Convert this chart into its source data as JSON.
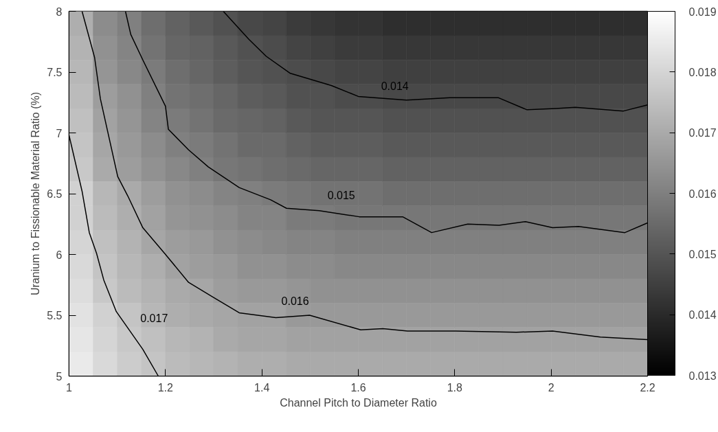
{
  "chart_data": {
    "type": "heatmap",
    "xlabel": "Channel Pitch to Diameter Ratio",
    "ylabel": "Uranium to Fissionable Material Ratio (%)",
    "xlim": [
      1,
      2.2
    ],
    "ylim": [
      5,
      8
    ],
    "xticks": [
      1,
      1.2,
      1.4,
      1.6,
      1.8,
      2,
      2.2
    ],
    "yticks": [
      5,
      5.5,
      6,
      6.5,
      7,
      7.5,
      8
    ],
    "clim": [
      0.013,
      0.019
    ],
    "cticks": [
      0.013,
      0.014,
      0.015,
      0.016,
      0.017,
      0.018,
      0.019
    ],
    "x": [
      1.025,
      1.075,
      1.125,
      1.175,
      1.225,
      1.275,
      1.325,
      1.375,
      1.425,
      1.475,
      1.525,
      1.575,
      1.625,
      1.675,
      1.725,
      1.775,
      1.825,
      1.875,
      1.925,
      1.975,
      2.025,
      2.075,
      2.125,
      2.175
    ],
    "cells": [
      [
        0.0171,
        0.0163,
        0.016,
        0.0156,
        0.0153,
        0.0151,
        0.0149,
        0.0147,
        0.0146,
        0.0144,
        0.0143,
        0.0142,
        0.0142,
        0.0141,
        0.0141,
        0.0141,
        0.0141,
        0.0141,
        0.0141,
        0.0141,
        0.0141,
        0.0141,
        0.0141,
        0.0141
      ],
      [
        0.0172,
        0.0164,
        0.0161,
        0.0157,
        0.0154,
        0.0153,
        0.0151,
        0.0149,
        0.0148,
        0.0146,
        0.0145,
        0.0144,
        0.0144,
        0.0143,
        0.0143,
        0.0143,
        0.0143,
        0.0143,
        0.0143,
        0.0143,
        0.0143,
        0.0143,
        0.0143,
        0.0143
      ],
      [
        0.0173,
        0.0165,
        0.0162,
        0.0159,
        0.0156,
        0.0154,
        0.0152,
        0.015,
        0.0149,
        0.0148,
        0.0147,
        0.0146,
        0.0146,
        0.0145,
        0.0145,
        0.0145,
        0.0145,
        0.0145,
        0.0145,
        0.0145,
        0.0145,
        0.0145,
        0.0145,
        0.0145
      ],
      [
        0.0174,
        0.0167,
        0.0164,
        0.016,
        0.0157,
        0.0156,
        0.0154,
        0.0152,
        0.0151,
        0.0149,
        0.0149,
        0.0148,
        0.0148,
        0.0147,
        0.0147,
        0.0147,
        0.0147,
        0.0147,
        0.0147,
        0.0147,
        0.0147,
        0.0147,
        0.0147,
        0.0147
      ],
      [
        0.0175,
        0.0168,
        0.0165,
        0.0161,
        0.0159,
        0.0157,
        0.0155,
        0.0154,
        0.0153,
        0.0151,
        0.015,
        0.015,
        0.015,
        0.0149,
        0.0149,
        0.0149,
        0.0149,
        0.0149,
        0.0149,
        0.0149,
        0.0149,
        0.0149,
        0.0149,
        0.0149
      ],
      [
        0.0176,
        0.0169,
        0.0166,
        0.0163,
        0.016,
        0.0159,
        0.0157,
        0.0155,
        0.0155,
        0.0153,
        0.0152,
        0.0152,
        0.0152,
        0.0151,
        0.0151,
        0.0151,
        0.0151,
        0.0151,
        0.0151,
        0.0151,
        0.0151,
        0.0151,
        0.0151,
        0.0151
      ],
      [
        0.0177,
        0.017,
        0.0167,
        0.0164,
        0.0162,
        0.016,
        0.0158,
        0.0157,
        0.0156,
        0.0155,
        0.0154,
        0.0154,
        0.0154,
        0.0153,
        0.0153,
        0.0153,
        0.0153,
        0.0153,
        0.0153,
        0.0153,
        0.0153,
        0.0153,
        0.0153,
        0.0153
      ],
      [
        0.0179,
        0.0173,
        0.017,
        0.0167,
        0.0164,
        0.0163,
        0.0161,
        0.016,
        0.0159,
        0.0158,
        0.0157,
        0.0157,
        0.0157,
        0.0156,
        0.0156,
        0.0156,
        0.0156,
        0.0156,
        0.0156,
        0.0156,
        0.0156,
        0.0156,
        0.0156,
        0.0156
      ],
      [
        0.0179,
        0.0174,
        0.0171,
        0.0168,
        0.0165,
        0.0164,
        0.0163,
        0.0161,
        0.0161,
        0.0159,
        0.0159,
        0.0158,
        0.0158,
        0.0158,
        0.0158,
        0.0158,
        0.0158,
        0.0158,
        0.0158,
        0.0158,
        0.0158,
        0.0158,
        0.0158,
        0.0158
      ],
      [
        0.018,
        0.0175,
        0.0172,
        0.0169,
        0.0167,
        0.0166,
        0.0164,
        0.0163,
        0.0162,
        0.0161,
        0.0161,
        0.016,
        0.016,
        0.016,
        0.016,
        0.016,
        0.016,
        0.016,
        0.016,
        0.016,
        0.016,
        0.016,
        0.016,
        0.016
      ],
      [
        0.0181,
        0.0176,
        0.0173,
        0.0171,
        0.0168,
        0.0167,
        0.0166,
        0.0164,
        0.0164,
        0.0163,
        0.0163,
        0.0162,
        0.0162,
        0.0162,
        0.0162,
        0.0162,
        0.0162,
        0.0162,
        0.0162,
        0.0162,
        0.0162,
        0.0162,
        0.0162,
        0.0162
      ],
      [
        0.0182,
        0.0177,
        0.0174,
        0.0172,
        0.017,
        0.0169,
        0.0167,
        0.0166,
        0.0166,
        0.0165,
        0.0164,
        0.0164,
        0.0164,
        0.0164,
        0.0164,
        0.0164,
        0.0164,
        0.0164,
        0.0164,
        0.0164,
        0.0164,
        0.0164,
        0.0164,
        0.0164
      ],
      [
        0.0183,
        0.0179,
        0.0176,
        0.0173,
        0.0171,
        0.017,
        0.0169,
        0.0168,
        0.0168,
        0.0166,
        0.0166,
        0.0166,
        0.0166,
        0.0166,
        0.0166,
        0.0166,
        0.0166,
        0.0166,
        0.0166,
        0.0166,
        0.0166,
        0.0166,
        0.0166,
        0.0166
      ],
      [
        0.0184,
        0.018,
        0.0177,
        0.0175,
        0.0173,
        0.0172,
        0.017,
        0.0169,
        0.0169,
        0.0168,
        0.0168,
        0.0168,
        0.0168,
        0.0168,
        0.0168,
        0.0168,
        0.0168,
        0.0168,
        0.0168,
        0.0168,
        0.0168,
        0.0168,
        0.0168,
        0.0168
      ],
      [
        0.0185,
        0.0181,
        0.0178,
        0.0176,
        0.0174,
        0.0173,
        0.0172,
        0.0171,
        0.0171,
        0.017,
        0.017,
        0.017,
        0.017,
        0.017,
        0.017,
        0.017,
        0.017,
        0.017,
        0.017,
        0.017,
        0.017,
        0.017,
        0.017,
        0.017
      ]
    ],
    "series": [
      {
        "type": "line",
        "name": "0.014",
        "color": "#000000",
        "x": [
          1.32,
          1.373,
          1.409,
          1.459,
          1.544,
          1.6,
          1.7,
          1.79,
          1.89,
          1.95,
          2.01,
          2.05,
          2.15,
          2.2
        ],
        "values": [
          8,
          7.77,
          7.63,
          7.49,
          7.39,
          7.3,
          7.27,
          7.29,
          7.29,
          7.19,
          7.2,
          7.21,
          7.18,
          7.23
        ]
      },
      {
        "type": "line",
        "name": "0.015",
        "color": "#000000",
        "x": [
          1.117,
          1.128,
          1.153,
          1.2,
          1.206,
          1.248,
          1.289,
          1.353,
          1.418,
          1.451,
          1.519,
          1.602,
          1.692,
          1.752,
          1.827,
          1.892,
          1.947,
          2.003,
          2.057,
          2.153,
          2.2
        ],
        "values": [
          8,
          7.81,
          7.6,
          7.22,
          7.03,
          6.86,
          6.72,
          6.55,
          6.45,
          6.38,
          6.36,
          6.31,
          6.31,
          6.18,
          6.25,
          6.24,
          6.27,
          6.22,
          6.23,
          6.18,
          6.26
        ]
      },
      {
        "type": "line",
        "name": "0.016",
        "color": "#000000",
        "x": [
          1.027,
          1.053,
          1.065,
          1.101,
          1.122,
          1.153,
          1.198,
          1.248,
          1.298,
          1.353,
          1.429,
          1.499,
          1.605,
          1.651,
          1.702,
          1.802,
          1.928,
          2.003,
          2.102,
          2.2
        ],
        "values": [
          8,
          7.62,
          7.28,
          6.64,
          6.48,
          6.22,
          6.01,
          5.77,
          5.65,
          5.52,
          5.48,
          5.5,
          5.38,
          5.39,
          5.37,
          5.37,
          5.36,
          5.37,
          5.32,
          5.3
        ]
      },
      {
        "type": "line",
        "name": "0.017",
        "color": "#000000",
        "x": [
          1.0,
          1.027,
          1.042,
          1.057,
          1.072,
          1.098,
          1.153,
          1.185
        ],
        "values": [
          6.98,
          6.52,
          6.18,
          6.01,
          5.79,
          5.53,
          5.22,
          5
        ]
      }
    ]
  }
}
